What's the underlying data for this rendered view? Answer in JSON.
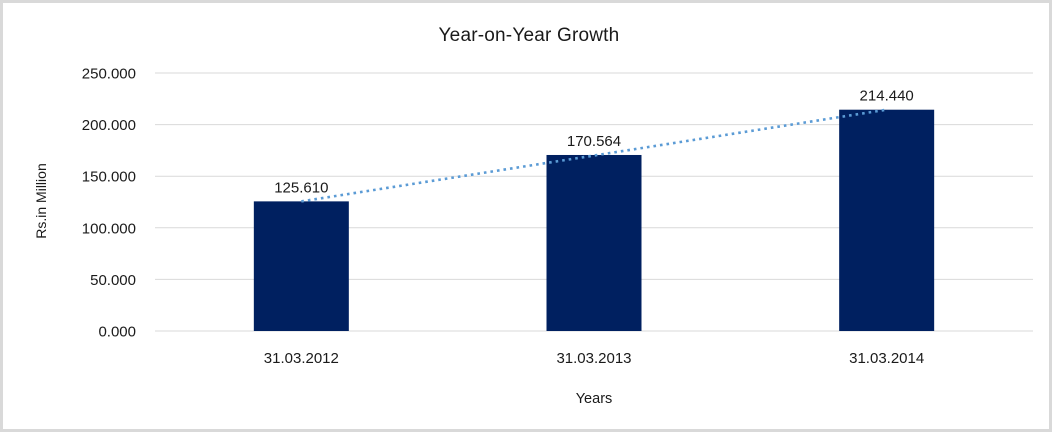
{
  "frame": {
    "background": "#ffffff",
    "border_color": "#d9d9d9"
  },
  "chart_data": {
    "type": "bar",
    "title": "Year-on-Year Growth",
    "xlabel": "Years",
    "ylabel": "Rs.in Million",
    "categories": [
      "31.03.2012",
      "31.03.2013",
      "31.03.2014"
    ],
    "values": [
      125.61,
      170.564,
      214.44
    ],
    "data_labels": [
      "125.610",
      "170.564",
      "214.440"
    ],
    "y_ticks": [
      {
        "value": 0,
        "label": "0.000"
      },
      {
        "value": 50,
        "label": "50.000"
      },
      {
        "value": 100,
        "label": "100.000"
      },
      {
        "value": 150,
        "label": "150.000"
      },
      {
        "value": 200,
        "label": "200.000"
      },
      {
        "value": 250,
        "label": "250.000"
      }
    ],
    "ylim": [
      0,
      250
    ],
    "grid": true,
    "legend": "none",
    "bar_color": "#002060",
    "gridline_color": "#d9d9d9",
    "trendline": {
      "type": "linear",
      "style": "dotted",
      "color": "#5b9bd5",
      "from_value": 125.61,
      "to_value": 214.44
    }
  }
}
